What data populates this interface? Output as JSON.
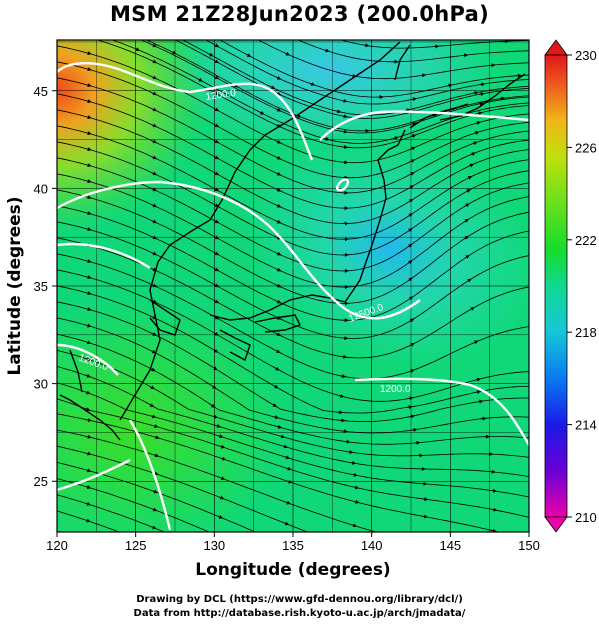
{
  "title": "MSM 21Z28Jun2023 (200.0hPa)",
  "x_axis": {
    "label": "Longitude (degrees)",
    "range": [
      120,
      150
    ],
    "ticks": [
      120,
      125,
      130,
      135,
      140,
      145,
      150
    ]
  },
  "y_axis": {
    "label": "Latitude  (degrees)",
    "range": [
      22.4,
      47.6
    ],
    "ticks": [
      25,
      30,
      35,
      40,
      45
    ]
  },
  "colorbar": {
    "range": [
      210,
      230
    ],
    "ticks": [
      210,
      214,
      218,
      222,
      226,
      230
    ],
    "colors": [
      "#ee00aa",
      "#6a00d6",
      "#1a1ae6",
      "#0a7af0",
      "#16c6d8",
      "#10d890",
      "#16dc2a",
      "#6ae01c",
      "#c0e00c",
      "#f0b418",
      "#f06020",
      "#e01818"
    ]
  },
  "contours": [
    {
      "label": "1200.0"
    },
    {
      "label": "12500.0"
    },
    {
      "label": "1200.0"
    },
    {
      "label": "1200.0"
    }
  ],
  "credits": [
    "Drawing by DCL (https://www.gfd-dennou.org/library/dcl/)",
    "Data from http://database.rish.kyoto-u.ac.jp/arch/jmadata/"
  ]
}
